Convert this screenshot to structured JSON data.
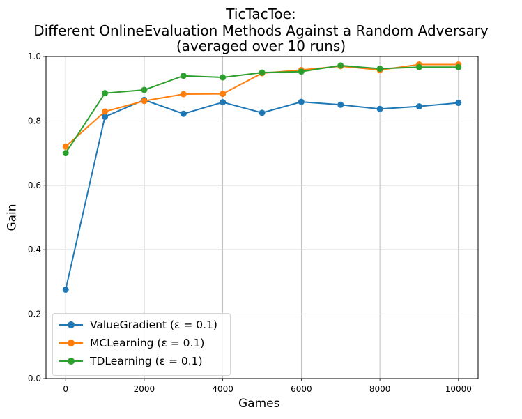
{
  "chart_data": {
    "type": "line",
    "title": "TicTacToe:",
    "subtitle": "Different OnlineEvaluation Methods Against a Random Adversary",
    "subtitle2": "(averaged over 10 runs)",
    "xlabel": "Games",
    "ylabel": "Gain",
    "x": [
      0,
      1000,
      2000,
      3000,
      4000,
      5000,
      6000,
      7000,
      8000,
      9000,
      10000
    ],
    "xticks": [
      "0",
      "2000",
      "4000",
      "6000",
      "8000",
      "10000"
    ],
    "yticks": [
      "0.0",
      "0.2",
      "0.4",
      "0.6",
      "0.8",
      "1.0"
    ],
    "xlim": [
      -500,
      10500
    ],
    "ylim": [
      0,
      1
    ],
    "grid": true,
    "legend_position": "lower-left",
    "series": [
      {
        "name": "ValueGradient (ε = 0.1)",
        "color": "#1f77b4",
        "values": [
          0.276,
          0.813,
          0.865,
          0.822,
          0.858,
          0.825,
          0.859,
          0.85,
          0.837,
          0.845,
          0.856
        ]
      },
      {
        "name": "MCLearning (ε = 0.1)",
        "color": "#ff7f0e",
        "values": [
          0.72,
          0.829,
          0.862,
          0.883,
          0.884,
          0.948,
          0.958,
          0.97,
          0.958,
          0.975,
          0.975
        ]
      },
      {
        "name": "TDLearning (ε = 0.1)",
        "color": "#2ca02c",
        "values": [
          0.7,
          0.886,
          0.896,
          0.94,
          0.935,
          0.95,
          0.953,
          0.972,
          0.962,
          0.967,
          0.967
        ]
      }
    ]
  }
}
